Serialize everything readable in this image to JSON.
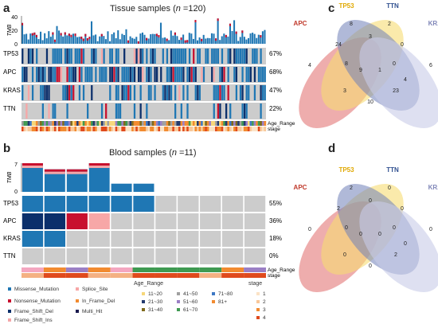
{
  "panels": {
    "a": {
      "letter": "a",
      "title_prefix": "Tissue samples (",
      "title_n": "n",
      "title_suffix": " =120)",
      "tmb_label": "TMB",
      "tmb_ticks": [
        "40",
        "20",
        "0"
      ],
      "genes": [
        {
          "name": "TP53",
          "pct": "67%",
          "freq": 0.67
        },
        {
          "name": "APC",
          "pct": "68%",
          "freq": 0.68
        },
        {
          "name": "KRAS",
          "pct": "47%",
          "freq": 0.47
        },
        {
          "name": "TTN",
          "pct": "22%",
          "freq": 0.22
        }
      ],
      "track_labels": [
        "Age_Range",
        "stage"
      ]
    },
    "b": {
      "letter": "b",
      "title_prefix": "Blood samples (",
      "title_n": "n",
      "title_suffix": " =11)",
      "tmb_label": "TMB",
      "tmb_ticks": [
        "7",
        "0"
      ],
      "tmb_values": [
        7,
        5.5,
        5.5,
        7,
        2,
        2,
        0,
        0,
        0,
        0,
        0
      ],
      "genes": [
        {
          "name": "TP53",
          "pct": "55%",
          "cells": [
            "m",
            "m",
            "m",
            "m",
            "m",
            "m",
            "n",
            "n",
            "n",
            "n",
            "n"
          ]
        },
        {
          "name": "APC",
          "pct": "36%",
          "cells": [
            "d",
            "d",
            "s",
            "sp",
            "n",
            "n",
            "n",
            "n",
            "n",
            "n",
            "n"
          ]
        },
        {
          "name": "KRAS",
          "pct": "18%",
          "cells": [
            "m",
            "m",
            "n",
            "n",
            "n",
            "n",
            "n",
            "n",
            "n",
            "n",
            "n"
          ]
        },
        {
          "name": "TTN",
          "pct": "0%",
          "cells": [
            "n",
            "n",
            "n",
            "n",
            "n",
            "n",
            "n",
            "n",
            "n",
            "n",
            "n"
          ]
        }
      ],
      "age_track": [
        "#f4a6c0",
        "#f28b30",
        "#9b7fc5",
        "#f28b30",
        "#f4a6c0",
        "#3f9a52",
        "#3f9a52",
        "#3f9a52",
        "#3f9a52",
        "#f28b30",
        "#9b7fc5"
      ],
      "stage_track": [
        "#f4b183",
        "#e04a1d",
        "#e04a1d",
        "#f4b183",
        "#f4b183",
        "#e04a1d",
        "#e04a1d",
        "#e04a1d",
        "#f4b183",
        "#e04a1d",
        "#e04a1d"
      ],
      "track_labels": [
        "Age_Range",
        "stage"
      ]
    },
    "c": {
      "letter": "c",
      "sets": [
        "APC",
        "TP53",
        "TTN",
        "KRAS"
      ],
      "counts": [
        "4",
        "8",
        "2",
        "6",
        "24",
        "3",
        "0",
        "8",
        "9",
        "1",
        "0",
        "3",
        "23",
        "4",
        "10"
      ]
    },
    "d": {
      "letter": "d",
      "sets": [
        "APC",
        "TP53",
        "TTN",
        "KRAS"
      ],
      "counts": [
        "0",
        "2",
        "0",
        "0",
        "2",
        "0",
        "0",
        "0",
        "0",
        "0",
        "0",
        "0",
        "2",
        "0",
        "0"
      ]
    }
  },
  "legend": {
    "mutation_types": [
      {
        "label": "Missense_Mutation",
        "color": "#1f77b4"
      },
      {
        "label": "Nonsense_Mutation",
        "color": "#c8102e"
      },
      {
        "label": "Frame_Shift_Del",
        "color": "#0b2f6b"
      },
      {
        "label": "Frame_Shift_Ins",
        "color": "#f4a6a8"
      },
      {
        "label": "Splice_Site",
        "color": "#f7a7a7"
      },
      {
        "label": "In_Frame_Del",
        "color": "#f28b30"
      },
      {
        "label": "Multi_Hit",
        "color": "#1a1a4e"
      }
    ],
    "age_title": "Age_Range",
    "age_ranges": [
      {
        "label": "11~20",
        "color": "#f6d77a"
      },
      {
        "label": "21~30",
        "color": "#233a6e"
      },
      {
        "label": "31~40",
        "color": "#7f6a1c"
      },
      {
        "label": "41~50",
        "color": "#a0a0a0"
      },
      {
        "label": "51~60",
        "color": "#9b7fc5"
      },
      {
        "label": "61~70",
        "color": "#3f9a52"
      },
      {
        "label": "71~80",
        "color": "#3e78c4"
      },
      {
        "label": "81+",
        "color": "#f28b30"
      }
    ],
    "stage_title": "stage",
    "stages": [
      {
        "label": "1",
        "color": "#fbe3c6"
      },
      {
        "label": "2",
        "color": "#f8c89a"
      },
      {
        "label": "3",
        "color": "#f28b30"
      },
      {
        "label": "4",
        "color": "#e04a1d"
      }
    ]
  },
  "colors": {
    "missense": "#1f77b4",
    "nonsense": "#c8102e",
    "frameshift_del": "#0b2f6b",
    "frameshift_ins": "#f4a6a8",
    "splice": "#f7a7a7",
    "multi": "#1a1a4e",
    "none": "#cccccc",
    "venn_red": "#e06a6a",
    "venn_yellow": "#f6dc73",
    "venn_blue": "#6f7fb8",
    "venn_lav": "#c8cbe8"
  }
}
